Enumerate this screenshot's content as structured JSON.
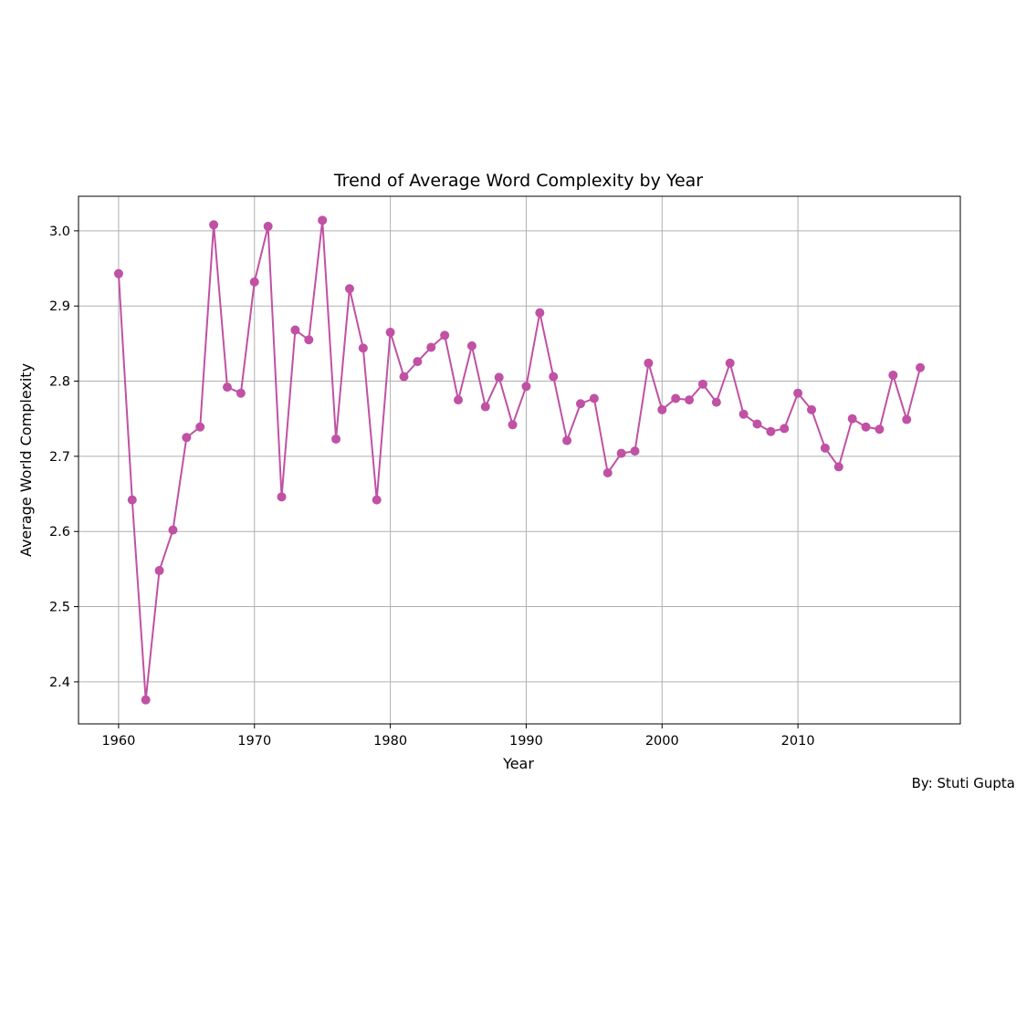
{
  "chart_data": {
    "type": "line",
    "title": "Trend of Average Word Complexity by Year",
    "xlabel": "Year",
    "ylabel": "Average World Complexity",
    "xlim": [
      1957.05,
      2021.95
    ],
    "ylim": [
      2.344,
      3.046
    ],
    "xticks": [
      1960,
      1970,
      1980,
      1990,
      2000,
      2010
    ],
    "yticks": [
      2.4,
      2.5,
      2.6,
      2.7,
      2.8,
      2.9,
      3.0
    ],
    "grid": true,
    "color": "#c051a4",
    "marker": "circle",
    "x": [
      1960,
      1961,
      1962,
      1963,
      1964,
      1965,
      1966,
      1967,
      1968,
      1969,
      1970,
      1971,
      1972,
      1973,
      1974,
      1975,
      1976,
      1977,
      1978,
      1979,
      1980,
      1981,
      1982,
      1983,
      1984,
      1985,
      1986,
      1987,
      1988,
      1989,
      1990,
      1991,
      1992,
      1993,
      1994,
      1995,
      1996,
      1997,
      1998,
      1999,
      2000,
      2001,
      2002,
      2003,
      2004,
      2005,
      2006,
      2007,
      2008,
      2009,
      2010,
      2011,
      2012,
      2013,
      2014,
      2015,
      2016,
      2017,
      2018,
      2019
    ],
    "y": [
      2.943,
      2.642,
      2.376,
      2.548,
      2.602,
      2.725,
      2.739,
      3.008,
      2.792,
      2.784,
      2.932,
      3.006,
      2.646,
      2.868,
      2.855,
      3.014,
      2.723,
      2.923,
      2.844,
      2.642,
      2.865,
      2.806,
      2.826,
      2.845,
      2.861,
      2.775,
      2.847,
      2.766,
      2.805,
      2.742,
      2.793,
      2.891,
      2.806,
      2.721,
      2.77,
      2.777,
      2.678,
      2.704,
      2.707,
      2.824,
      2.762,
      2.777,
      2.775,
      2.796,
      2.772,
      2.824,
      2.756,
      2.743,
      2.733,
      2.737,
      2.784,
      2.762,
      2.711,
      2.686,
      2.75,
      2.739,
      2.736,
      2.808,
      2.749,
      2.818
    ]
  },
  "credit": "By: Stuti Gupta"
}
